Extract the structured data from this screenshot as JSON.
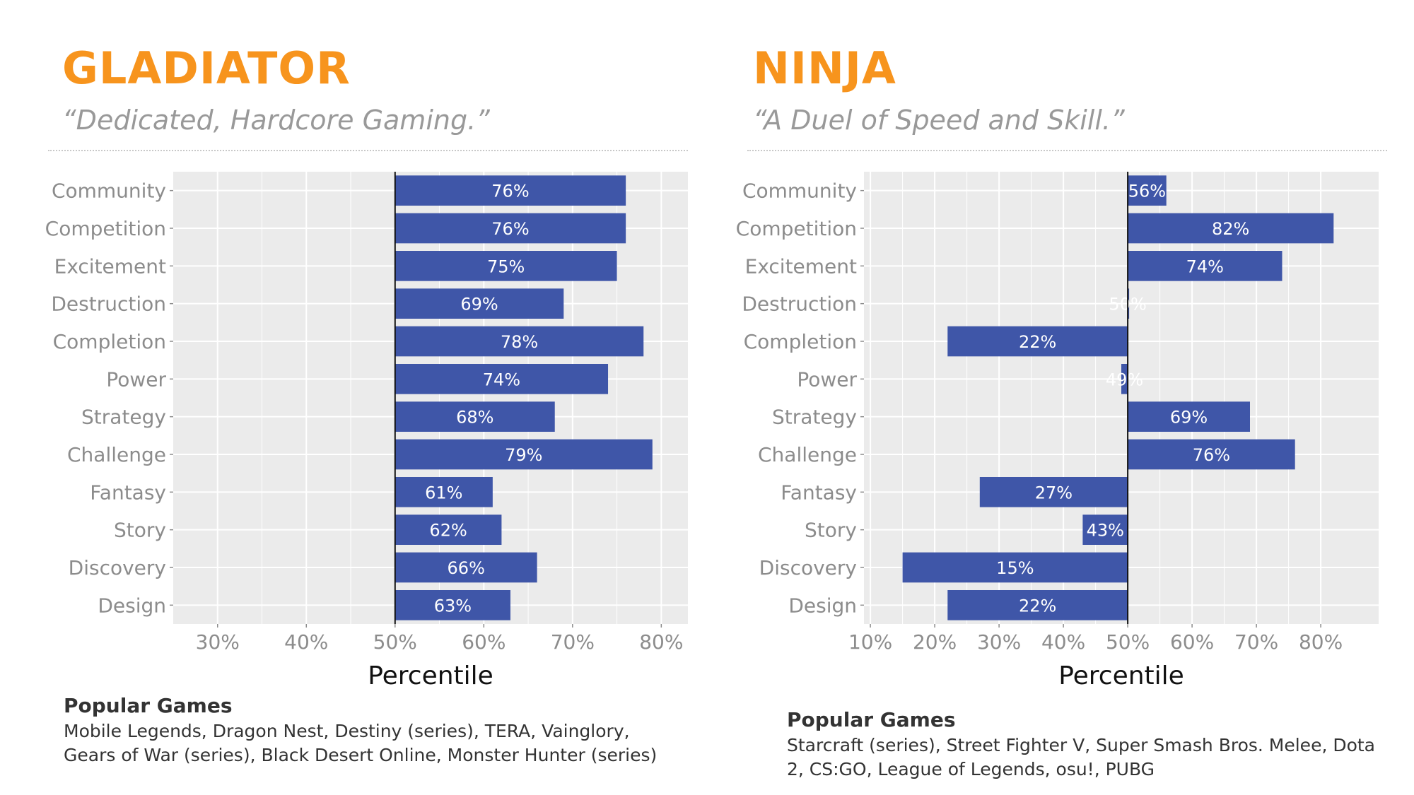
{
  "chart_data": [
    {
      "type": "bar",
      "title": "GLADIATOR",
      "subtitle": "“Dedicated, Hardcore Gaming.”",
      "xlabel": "Percentile",
      "ylabel": "",
      "baseline": 50,
      "xlim": [
        25,
        83
      ],
      "xticks": [
        30,
        40,
        50,
        60,
        70,
        80
      ],
      "tick_labels": [
        "30%",
        "40%",
        "50%",
        "60%",
        "70%",
        "80%"
      ],
      "categories": [
        "Community",
        "Competition",
        "Excitement",
        "Destruction",
        "Completion",
        "Power",
        "Strategy",
        "Challenge",
        "Fantasy",
        "Story",
        "Discovery",
        "Design"
      ],
      "values": [
        76,
        76,
        75,
        69,
        78,
        74,
        68,
        79,
        61,
        62,
        66,
        63
      ],
      "data_labels": [
        "76%",
        "76%",
        "75%",
        "69%",
        "78%",
        "74%",
        "68%",
        "79%",
        "61%",
        "62%",
        "66%",
        "63%"
      ],
      "grid": true,
      "colors": {
        "bar": "#3f56a8",
        "panel_bg": "#ebebeb",
        "grid": "#ffffff"
      },
      "popular_games": {
        "heading": "Popular Games",
        "lines": [
          "Mobile Legends, Dragon Nest, Destiny (series), TERA, Vainglory,",
          "Gears of War (series), Black Desert Online, Monster Hunter (series)"
        ]
      }
    },
    {
      "type": "bar",
      "title": "NINJA",
      "subtitle": "“A Duel of Speed and Skill.”",
      "xlabel": "Percentile",
      "ylabel": "",
      "baseline": 50,
      "xlim": [
        9,
        89
      ],
      "xticks": [
        10,
        20,
        30,
        40,
        50,
        60,
        70,
        80
      ],
      "tick_labels": [
        "10%",
        "20%",
        "30%",
        "40%",
        "50%",
        "60%",
        "70%",
        "80%"
      ],
      "categories": [
        "Community",
        "Competition",
        "Excitement",
        "Destruction",
        "Completion",
        "Power",
        "Strategy",
        "Challenge",
        "Fantasy",
        "Story",
        "Discovery",
        "Design"
      ],
      "values": [
        56,
        82,
        74,
        50,
        22,
        49,
        69,
        76,
        27,
        43,
        15,
        22
      ],
      "data_labels": [
        "56%",
        "82%",
        "74%",
        "50%",
        "22%",
        "49%",
        "69%",
        "76%",
        "27%",
        "43%",
        "15%",
        "22%"
      ],
      "grid": true,
      "colors": {
        "bar": "#3f56a8",
        "panel_bg": "#ebebeb",
        "grid": "#ffffff"
      },
      "popular_games": {
        "heading": "Popular Games",
        "lines": [
          "Starcraft (series), Street Fighter V, Super Smash Bros. Melee, Dota",
          "2, CS:GO, League of Legends, osu!, PUBG"
        ]
      }
    }
  ]
}
